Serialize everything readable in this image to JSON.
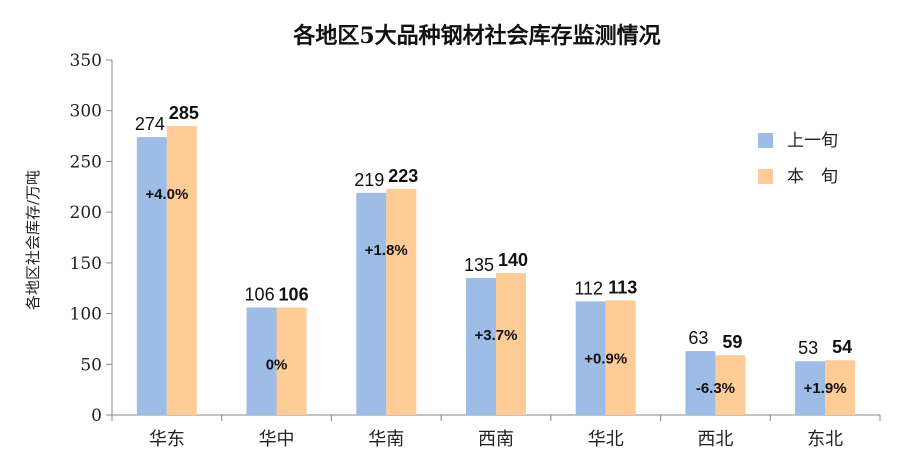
{
  "chart_data": {
    "type": "bar",
    "title": "各地区5大品种钢材社会库存监测情况",
    "ylabel": "各地区社会库存/万吨",
    "xlabel": "",
    "ylim": [
      0,
      350
    ],
    "yticks": [
      0,
      50,
      100,
      150,
      200,
      250,
      300,
      350
    ],
    "categories": [
      "华东",
      "华中",
      "华南",
      "西南",
      "华北",
      "西北",
      "东北"
    ],
    "series": [
      {
        "name": "上一旬",
        "color": "#9DBCE6",
        "values": [
          274,
          106,
          219,
          135,
          112,
          63,
          53
        ]
      },
      {
        "name": "本　旬",
        "color": "#FFCB96",
        "values": [
          285,
          106,
          223,
          140,
          113,
          59,
          54
        ]
      }
    ],
    "change_labels": [
      "+4.0%",
      "0%",
      "+1.8%",
      "+3.7%",
      "+0.9%",
      "-6.3%",
      "+1.9%"
    ],
    "legend_position": "right",
    "grid": false
  }
}
